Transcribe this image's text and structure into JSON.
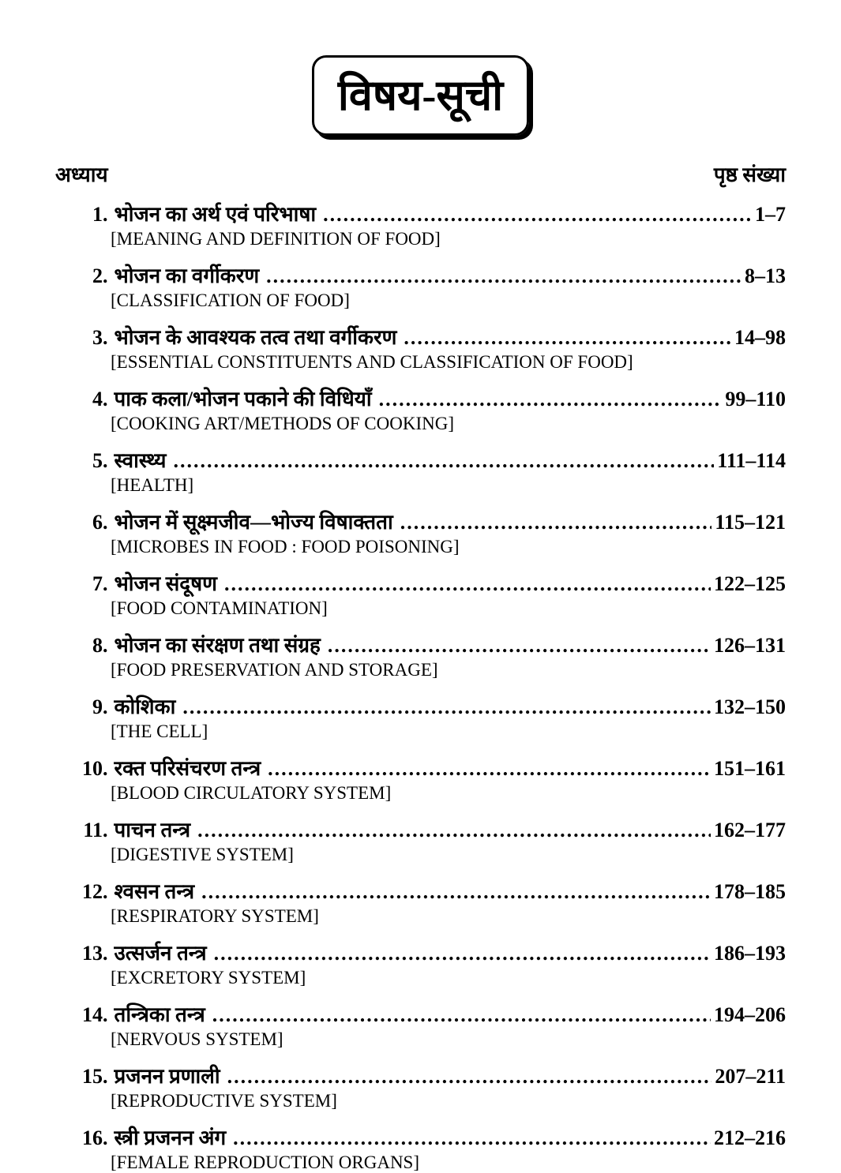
{
  "title": "विषय-सूची",
  "header_left": "अध्याय",
  "header_right": "पृष्ठ संख्या",
  "items": [
    {
      "n": "1",
      "hi": "भोजन का अर्थ एवं परिभाषा",
      "pages": "1–7",
      "en": "[MEANING AND DEFINITION OF FOOD]"
    },
    {
      "n": "2",
      "hi": "भोजन का वर्गीकरण",
      "pages": "8–13",
      "en": "[CLASSIFICATION OF FOOD]"
    },
    {
      "n": "3",
      "hi": "भोजन के आवश्यक तत्व तथा वर्गीकरण",
      "pages": "14–98",
      "en": "[ESSENTIAL CONSTITUENTS AND CLASSIFICATION OF FOOD]"
    },
    {
      "n": "4",
      "hi": "पाक कला/भोजन पकाने की विधियाँ",
      "pages": "99–110",
      "en": "[COOKING ART/METHODS OF COOKING]"
    },
    {
      "n": "5",
      "hi": "स्वास्थ्य",
      "pages": "111–114",
      "en": "[HEALTH]"
    },
    {
      "n": "6",
      "hi": "भोजन में सूक्ष्मजीव—भोज्य विषाक्तता",
      "pages": "115–121",
      "en": "[MICROBES IN FOOD : FOOD POISONING]"
    },
    {
      "n": "7",
      "hi": "भोजन संदूषण",
      "pages": "122–125",
      "en": "[FOOD CONTAMINATION]"
    },
    {
      "n": "8",
      "hi": "भोजन का संरक्षण तथा संग्रह",
      "pages": "126–131",
      "en": "[FOOD PRESERVATION AND STORAGE]"
    },
    {
      "n": "9",
      "hi": "कोशिका",
      "pages": "132–150",
      "en": "[THE CELL]"
    },
    {
      "n": "10",
      "hi": "रक्त परिसंचरण तन्त्र",
      "pages": "151–161",
      "en": "[BLOOD CIRCULATORY SYSTEM]"
    },
    {
      "n": "11",
      "hi": "पाचन तन्त्र",
      "pages": "162–177",
      "en": "[DIGESTIVE SYSTEM]"
    },
    {
      "n": "12",
      "hi": "श्वसन तन्त्र",
      "pages": "178–185",
      "en": "[RESPIRATORY SYSTEM]"
    },
    {
      "n": "13",
      "hi": "उत्सर्जन तन्त्र",
      "pages": "186–193",
      "en": "[EXCRETORY SYSTEM]"
    },
    {
      "n": "14",
      "hi": "तन्त्रिका तन्त्र",
      "pages": "194–206",
      "en": "[NERVOUS SYSTEM]"
    },
    {
      "n": "15",
      "hi": "प्रजनन प्रणाली",
      "pages": "207–211",
      "en": "[REPRODUCTIVE SYSTEM]"
    },
    {
      "n": "16",
      "hi": "स्त्री प्रजनन अंग",
      "pages": "212–216",
      "en": "[FEMALE REPRODUCTION ORGANS]"
    }
  ]
}
